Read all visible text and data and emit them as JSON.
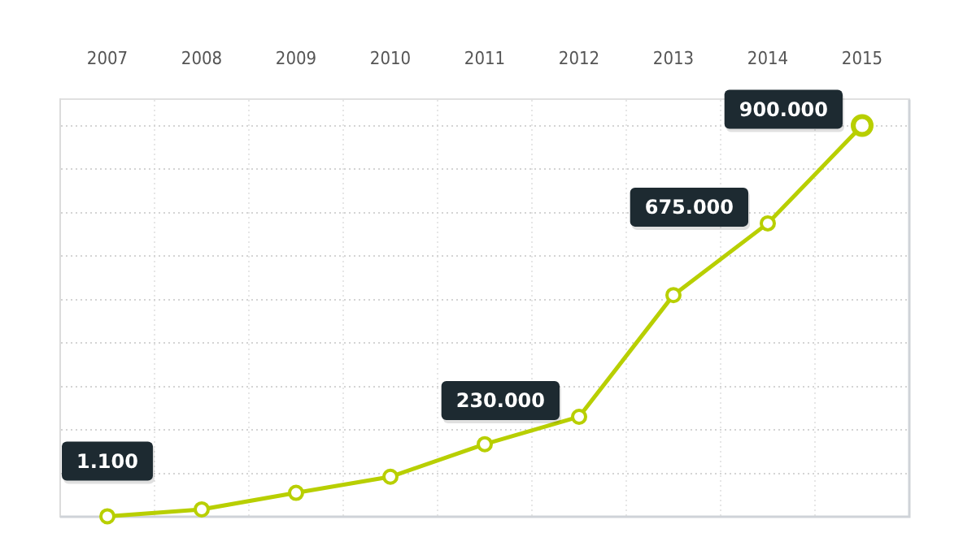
{
  "chart_data": {
    "type": "line",
    "categories": [
      "2007",
      "2008",
      "2009",
      "2010",
      "2011",
      "2012",
      "2013",
      "2014",
      "2015"
    ],
    "series": [
      {
        "color": "#b8cf00",
        "values": [
          1100,
          17000,
          55000,
          92000,
          167000,
          230000,
          510000,
          675000,
          900000
        ],
        "value_labels": [
          "1.100",
          null,
          null,
          null,
          null,
          "230.000",
          null,
          "675.000",
          "900.000"
        ]
      }
    ],
    "ylim": [
      0,
      960000
    ],
    "yticks": [
      {
        "value": 0,
        "label": null
      },
      {
        "value": 100000,
        "label": null
      },
      {
        "value": 200000,
        "label": null
      },
      {
        "value": 300000,
        "label": null
      },
      {
        "value": 400000,
        "label": null
      },
      {
        "value": 500000,
        "label": null
      },
      {
        "value": 600000,
        "label": null
      },
      {
        "value": 700000,
        "label": null
      },
      {
        "value": 800000,
        "label": null
      },
      {
        "value": 900000,
        "label": null
      }
    ],
    "tick_labels": "x",
    "grid": true,
    "legend": false,
    "marker": "circle",
    "line_style": "solid"
  }
}
